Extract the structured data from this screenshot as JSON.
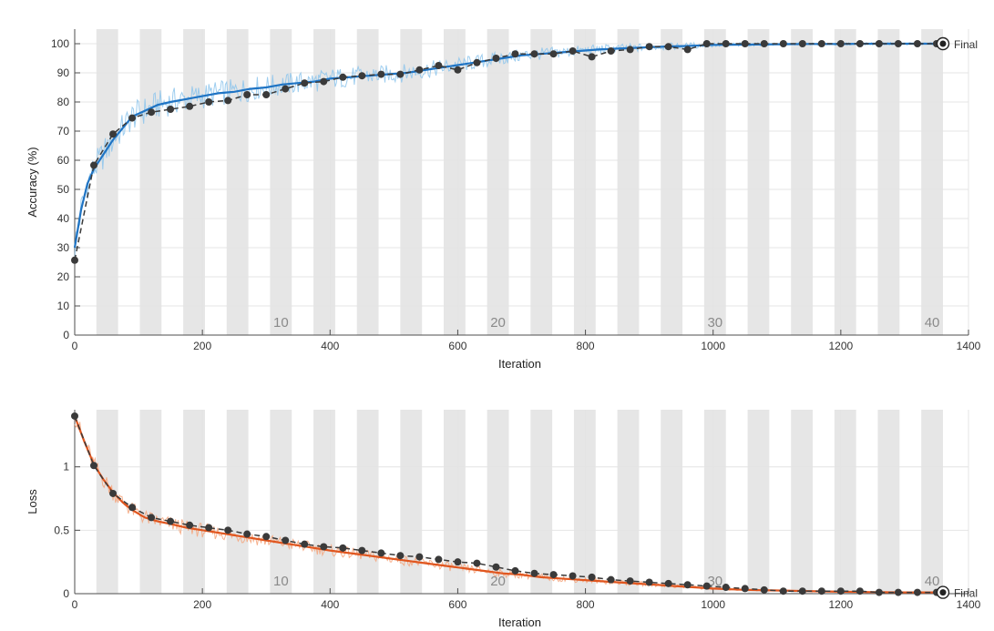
{
  "colors": {
    "accuracy_raw": "#8cc4ec",
    "accuracy_smooth": "#1f74c4",
    "loss_raw": "#f5a37a",
    "loss_smooth": "#e0561f",
    "validation": "#3a3a3a",
    "epoch_band": "#e6e6e6",
    "grid": "#e4e4e4",
    "axis": "#4d4d4d"
  },
  "chart_data": [
    {
      "type": "line",
      "panel": "accuracy",
      "xlabel": "Iteration",
      "ylabel": "Accuracy (%)",
      "xlim": [
        0,
        1400
      ],
      "ylim": [
        0,
        105
      ],
      "x_ticks": [
        0,
        200,
        400,
        600,
        800,
        1000,
        1200,
        1400
      ],
      "y_ticks": [
        0,
        10,
        20,
        30,
        40,
        50,
        60,
        70,
        80,
        90,
        100
      ],
      "grid": true,
      "epoch_bands": {
        "iterations_per_epoch": 34,
        "epochs": 40
      },
      "epoch_labels": [
        {
          "label": "10",
          "x": 323
        },
        {
          "label": "20",
          "x": 663
        },
        {
          "label": "30",
          "x": 1003
        },
        {
          "label": "40",
          "x": 1343
        }
      ],
      "final_label": "Final",
      "series": [
        {
          "role": "training_smoothed",
          "x": [
            0,
            10,
            20,
            30,
            45,
            60,
            75,
            90,
            110,
            130,
            150,
            175,
            200,
            225,
            250,
            275,
            300,
            325,
            350,
            375,
            400,
            430,
            460,
            490,
            520,
            550,
            580,
            610,
            640,
            670,
            700,
            730,
            760,
            790,
            820,
            850,
            880,
            910,
            940,
            970,
            1000,
            1050,
            1100,
            1150,
            1200,
            1250,
            1300,
            1360
          ],
          "y": [
            30,
            43,
            52,
            57,
            62,
            67,
            71,
            75,
            77,
            79,
            80,
            81,
            82,
            83,
            83.5,
            84.5,
            85,
            86,
            86.5,
            87,
            88,
            88.5,
            89,
            89.5,
            90,
            91,
            92,
            93,
            94,
            95,
            96,
            96.5,
            97,
            97.5,
            98,
            98.3,
            98.6,
            98.9,
            99.1,
            99.3,
            99.6,
            99.7,
            99.8,
            99.9,
            99.9,
            100,
            100,
            100
          ]
        },
        {
          "role": "validation",
          "x": [
            0,
            30,
            60,
            90,
            120,
            150,
            180,
            210,
            240,
            270,
            300,
            330,
            360,
            390,
            420,
            450,
            480,
            510,
            540,
            570,
            600,
            630,
            660,
            690,
            720,
            750,
            780,
            810,
            840,
            870,
            900,
            930,
            960,
            990,
            1020,
            1050,
            1080,
            1110,
            1140,
            1170,
            1200,
            1230,
            1260,
            1290,
            1320,
            1350,
            1360
          ],
          "y": [
            25.7,
            58.3,
            69,
            74.5,
            76.5,
            77.5,
            78.5,
            80,
            80.5,
            82.5,
            82.5,
            84.5,
            86.5,
            87,
            88.5,
            89,
            89.5,
            89.5,
            91,
            92.5,
            91,
            93.5,
            95,
            96.5,
            96.5,
            96.5,
            97.5,
            95.5,
            97.5,
            98,
            99,
            99,
            98,
            100,
            100,
            100,
            100,
            100,
            100,
            100,
            100,
            100,
            100,
            100,
            100,
            100,
            100
          ]
        }
      ]
    },
    {
      "type": "line",
      "panel": "loss",
      "xlabel": "Iteration",
      "ylabel": "Loss",
      "xlim": [
        0,
        1400
      ],
      "ylim": [
        0,
        1.45
      ],
      "x_ticks": [
        0,
        200,
        400,
        600,
        800,
        1000,
        1200,
        1400
      ],
      "y_ticks": [
        0,
        0.5,
        1
      ],
      "y_tick_labels": [
        "0",
        "0.5",
        "1"
      ],
      "grid": true,
      "epoch_bands": {
        "iterations_per_epoch": 34,
        "epochs": 40
      },
      "epoch_labels": [
        {
          "label": "10",
          "x": 323
        },
        {
          "label": "20",
          "x": 663
        },
        {
          "label": "30",
          "x": 1003
        },
        {
          "label": "40",
          "x": 1343
        }
      ],
      "final_label": "Final",
      "series": [
        {
          "role": "training_smoothed",
          "x": [
            0,
            15,
            30,
            45,
            60,
            75,
            90,
            110,
            130,
            150,
            175,
            200,
            225,
            250,
            275,
            300,
            325,
            350,
            375,
            400,
            430,
            460,
            490,
            520,
            550,
            580,
            610,
            640,
            670,
            700,
            730,
            760,
            790,
            820,
            850,
            880,
            910,
            940,
            970,
            1000,
            1050,
            1100,
            1150,
            1200,
            1250,
            1300,
            1360
          ],
          "y": [
            1.4,
            1.2,
            1.02,
            0.9,
            0.8,
            0.72,
            0.66,
            0.6,
            0.57,
            0.55,
            0.52,
            0.5,
            0.48,
            0.46,
            0.44,
            0.42,
            0.4,
            0.38,
            0.36,
            0.34,
            0.32,
            0.3,
            0.28,
            0.26,
            0.24,
            0.22,
            0.2,
            0.18,
            0.16,
            0.15,
            0.13,
            0.12,
            0.11,
            0.1,
            0.09,
            0.08,
            0.07,
            0.06,
            0.05,
            0.04,
            0.03,
            0.025,
            0.02,
            0.015,
            0.012,
            0.01,
            0.01
          ]
        },
        {
          "role": "validation",
          "x": [
            0,
            30,
            60,
            90,
            120,
            150,
            180,
            210,
            240,
            270,
            300,
            330,
            360,
            390,
            420,
            450,
            480,
            510,
            540,
            570,
            600,
            630,
            660,
            690,
            720,
            750,
            780,
            810,
            840,
            870,
            900,
            930,
            960,
            990,
            1020,
            1050,
            1080,
            1110,
            1140,
            1170,
            1200,
            1230,
            1260,
            1290,
            1320,
            1350,
            1360
          ],
          "y": [
            1.4,
            1.01,
            0.79,
            0.68,
            0.6,
            0.57,
            0.54,
            0.52,
            0.5,
            0.47,
            0.45,
            0.42,
            0.39,
            0.37,
            0.36,
            0.34,
            0.32,
            0.3,
            0.29,
            0.27,
            0.25,
            0.24,
            0.21,
            0.18,
            0.16,
            0.15,
            0.14,
            0.13,
            0.11,
            0.1,
            0.09,
            0.08,
            0.07,
            0.06,
            0.05,
            0.04,
            0.03,
            0.02,
            0.02,
            0.02,
            0.02,
            0.02,
            0.01,
            0.01,
            0.01,
            0.01,
            0.01
          ]
        }
      ]
    }
  ]
}
